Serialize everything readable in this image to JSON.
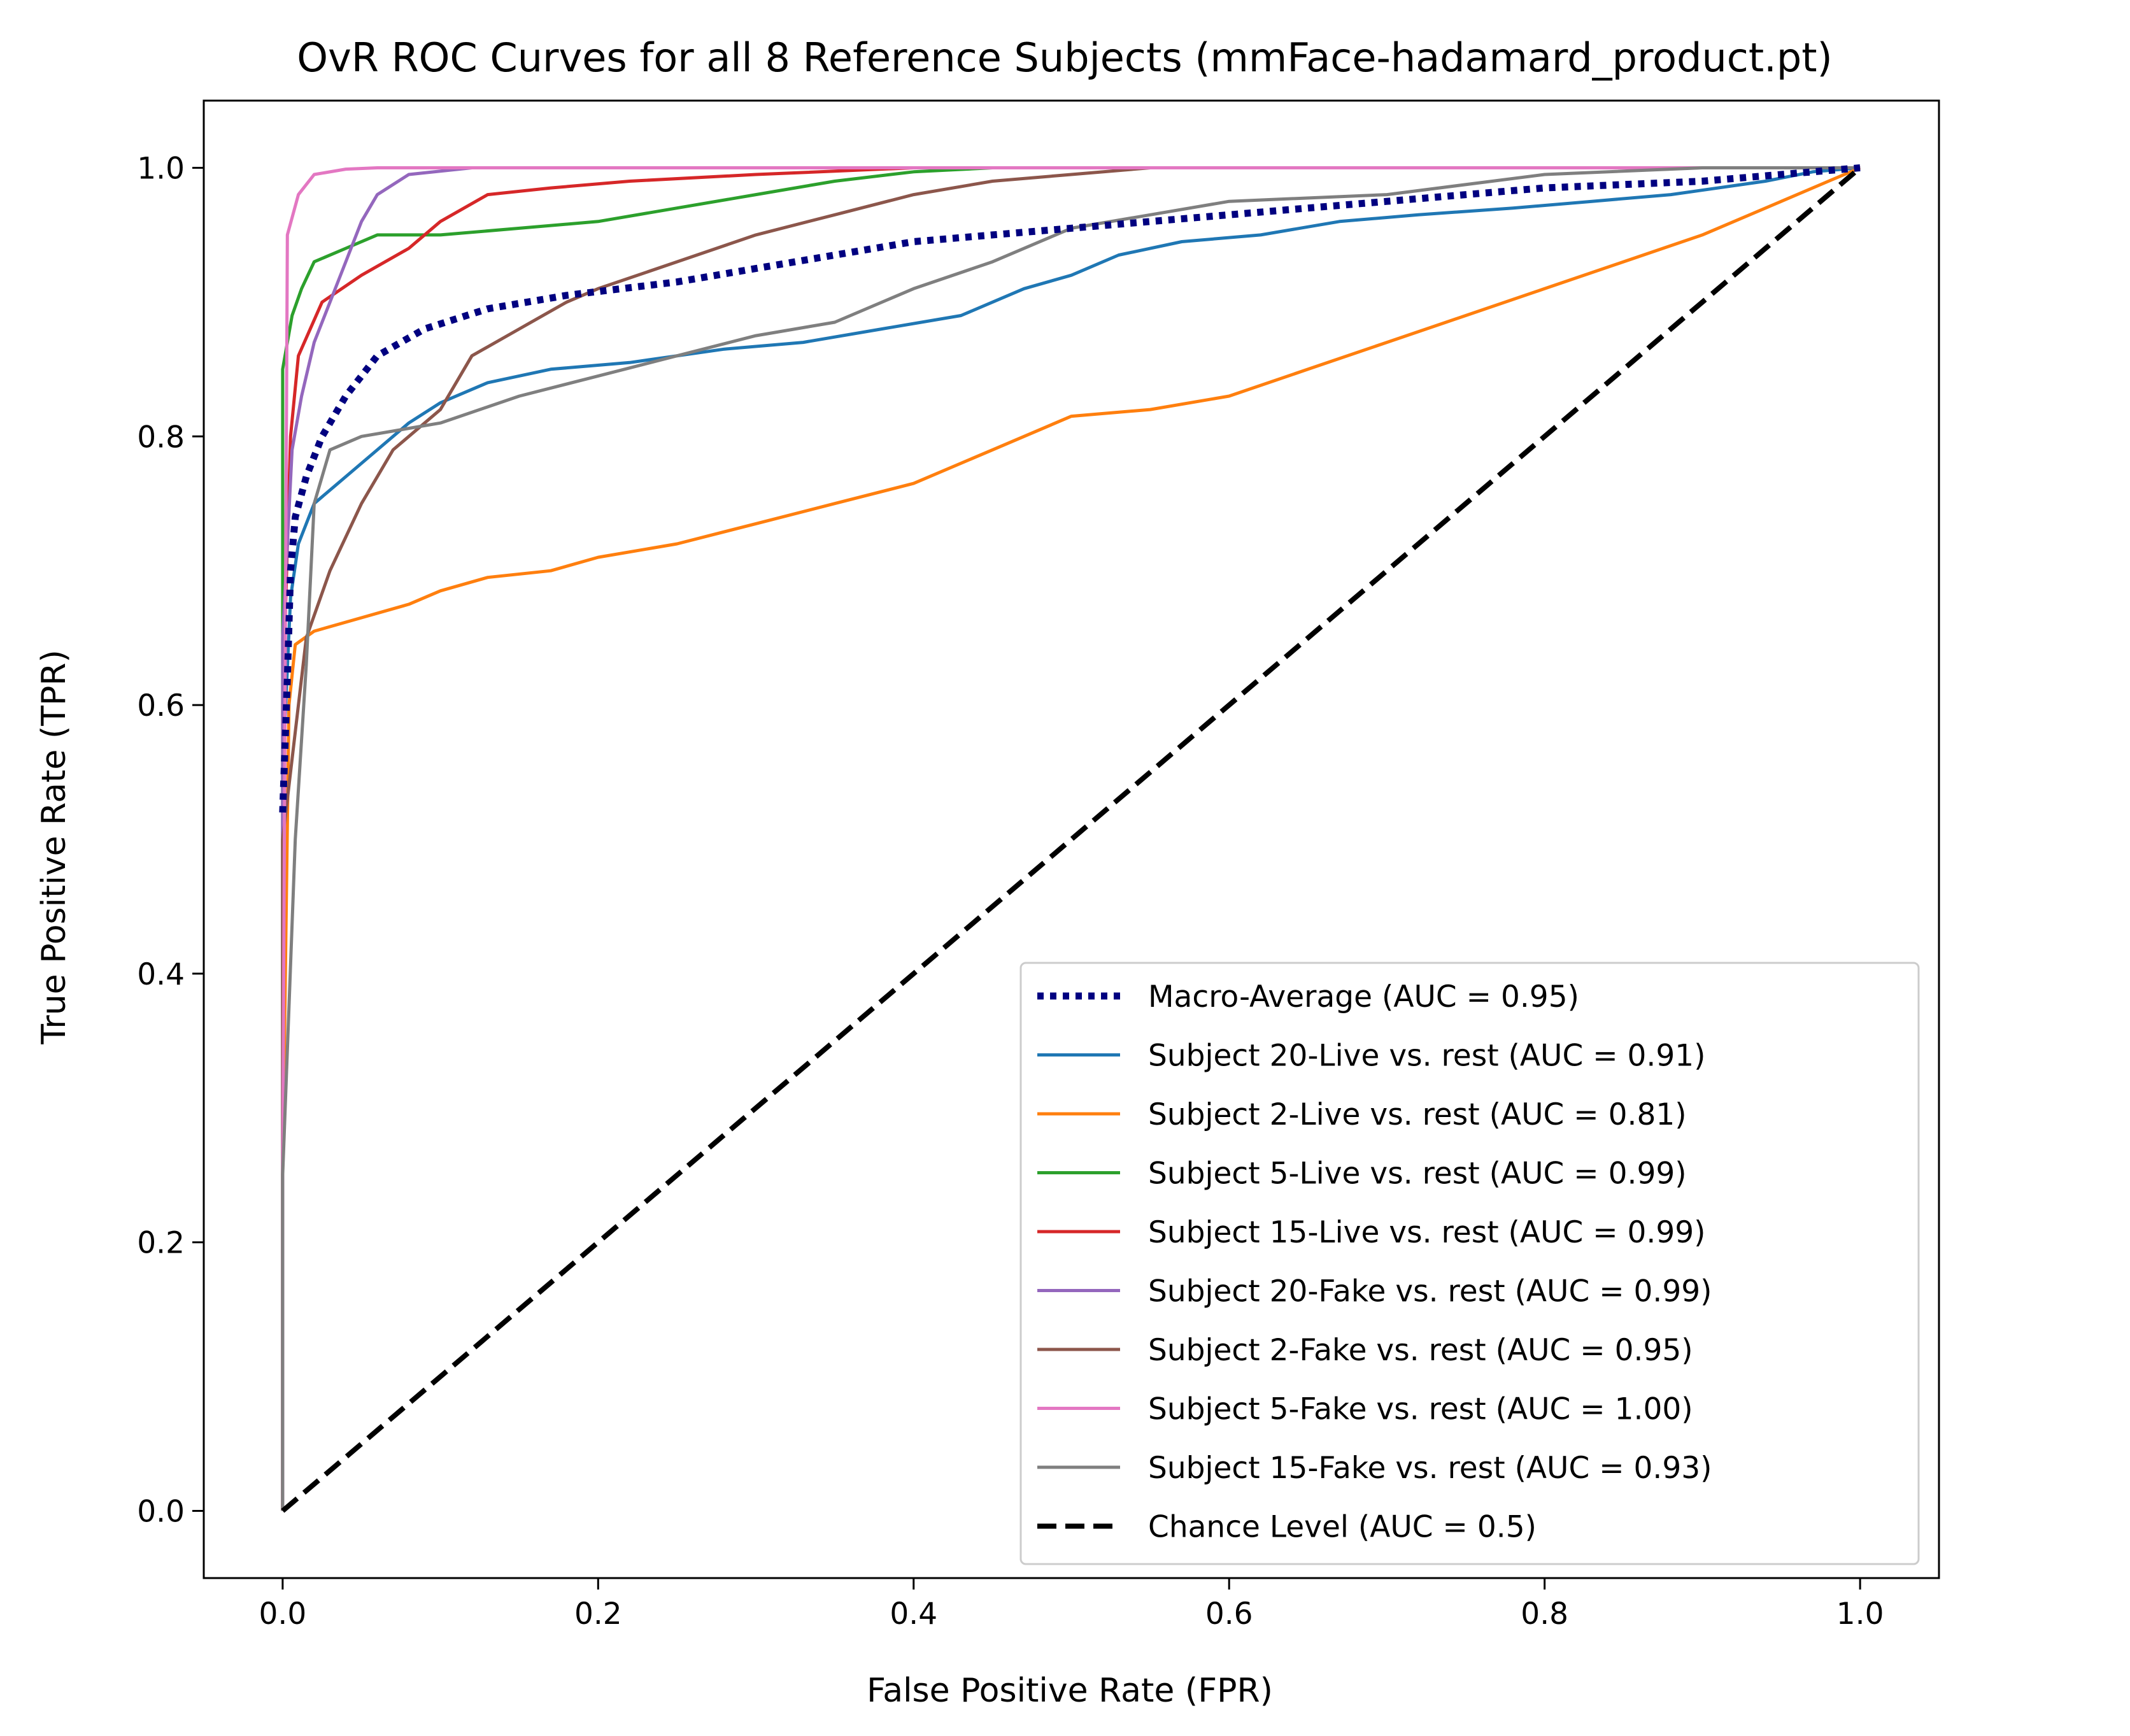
{
  "chart_data": {
    "type": "line",
    "title": "OvR ROC Curves for all 8 Reference Subjects (mmFace-hadamard_product.pt)",
    "xlabel": "False Positive Rate (FPR)",
    "ylabel": "True Positive Rate (TPR)",
    "xlim": [
      -0.05,
      1.05
    ],
    "ylim": [
      -0.05,
      1.05
    ],
    "xticks": [
      0.0,
      0.2,
      0.4,
      0.6,
      0.8,
      1.0
    ],
    "yticks": [
      0.0,
      0.2,
      0.4,
      0.6,
      0.8,
      1.0
    ],
    "xtick_labels": [
      "0.0",
      "0.2",
      "0.4",
      "0.6",
      "0.8",
      "1.0"
    ],
    "ytick_labels": [
      "0.0",
      "0.2",
      "0.4",
      "0.6",
      "0.8",
      "1.0"
    ],
    "grid": false,
    "legend_position": "lower-right",
    "series": [
      {
        "name": "Macro-Average (AUC = 0.95)",
        "color": "#000080",
        "style": "dotted",
        "points": [
          [
            0,
            0.52
          ],
          [
            0.003,
            0.62
          ],
          [
            0.005,
            0.7
          ],
          [
            0.008,
            0.74
          ],
          [
            0.015,
            0.77
          ],
          [
            0.025,
            0.8
          ],
          [
            0.04,
            0.83
          ],
          [
            0.06,
            0.86
          ],
          [
            0.09,
            0.88
          ],
          [
            0.13,
            0.895
          ],
          [
            0.18,
            0.905
          ],
          [
            0.25,
            0.915
          ],
          [
            0.3,
            0.925
          ],
          [
            0.35,
            0.935
          ],
          [
            0.4,
            0.945
          ],
          [
            0.45,
            0.95
          ],
          [
            0.5,
            0.955
          ],
          [
            0.55,
            0.96
          ],
          [
            0.6,
            0.965
          ],
          [
            0.65,
            0.97
          ],
          [
            0.7,
            0.975
          ],
          [
            0.75,
            0.98
          ],
          [
            0.8,
            0.985
          ],
          [
            0.9,
            0.99
          ],
          [
            1.0,
            1.0
          ]
        ]
      },
      {
        "name": "Subject 20-Live vs. rest (AUC = 0.91)",
        "color": "#1f77b4",
        "style": "solid",
        "points": [
          [
            0,
            0
          ],
          [
            0,
            0.55
          ],
          [
            0.005,
            0.68
          ],
          [
            0.01,
            0.72
          ],
          [
            0.02,
            0.75
          ],
          [
            0.04,
            0.77
          ],
          [
            0.06,
            0.79
          ],
          [
            0.08,
            0.81
          ],
          [
            0.1,
            0.825
          ],
          [
            0.13,
            0.84
          ],
          [
            0.17,
            0.85
          ],
          [
            0.22,
            0.855
          ],
          [
            0.28,
            0.865
          ],
          [
            0.33,
            0.87
          ],
          [
            0.38,
            0.88
          ],
          [
            0.43,
            0.89
          ],
          [
            0.47,
            0.91
          ],
          [
            0.5,
            0.92
          ],
          [
            0.53,
            0.935
          ],
          [
            0.57,
            0.945
          ],
          [
            0.62,
            0.95
          ],
          [
            0.67,
            0.96
          ],
          [
            0.72,
            0.965
          ],
          [
            0.78,
            0.97
          ],
          [
            0.83,
            0.975
          ],
          [
            0.88,
            0.98
          ],
          [
            0.94,
            0.99
          ],
          [
            0.97,
            0.997
          ],
          [
            1.0,
            1.0
          ]
        ]
      },
      {
        "name": "Subject 2-Live vs. rest (AUC = 0.81)",
        "color": "#ff7f0e",
        "style": "solid",
        "points": [
          [
            0,
            0
          ],
          [
            0,
            0.25
          ],
          [
            0.004,
            0.6
          ],
          [
            0.008,
            0.645
          ],
          [
            0.02,
            0.655
          ],
          [
            0.05,
            0.665
          ],
          [
            0.08,
            0.675
          ],
          [
            0.1,
            0.685
          ],
          [
            0.13,
            0.695
          ],
          [
            0.17,
            0.7
          ],
          [
            0.2,
            0.71
          ],
          [
            0.25,
            0.72
          ],
          [
            0.3,
            0.735
          ],
          [
            0.35,
            0.75
          ],
          [
            0.4,
            0.765
          ],
          [
            0.45,
            0.79
          ],
          [
            0.5,
            0.815
          ],
          [
            0.55,
            0.82
          ],
          [
            0.6,
            0.83
          ],
          [
            0.65,
            0.85
          ],
          [
            0.7,
            0.87
          ],
          [
            0.75,
            0.89
          ],
          [
            0.8,
            0.91
          ],
          [
            0.85,
            0.93
          ],
          [
            0.9,
            0.95
          ],
          [
            0.95,
            0.975
          ],
          [
            0.98,
            0.99
          ],
          [
            1.0,
            1.0
          ]
        ]
      },
      {
        "name": "Subject 5-Live vs. rest (AUC = 0.99)",
        "color": "#2ca02c",
        "style": "solid",
        "points": [
          [
            0,
            0
          ],
          [
            0,
            0.85
          ],
          [
            0.006,
            0.89
          ],
          [
            0.012,
            0.91
          ],
          [
            0.02,
            0.93
          ],
          [
            0.04,
            0.94
          ],
          [
            0.06,
            0.95
          ],
          [
            0.1,
            0.95
          ],
          [
            0.15,
            0.955
          ],
          [
            0.2,
            0.96
          ],
          [
            0.25,
            0.97
          ],
          [
            0.3,
            0.98
          ],
          [
            0.35,
            0.99
          ],
          [
            0.4,
            0.997
          ],
          [
            0.45,
            1.0
          ],
          [
            1.0,
            1.0
          ]
        ]
      },
      {
        "name": "Subject 15-Live vs. rest (AUC = 0.99)",
        "color": "#d62728",
        "style": "solid",
        "points": [
          [
            0,
            0
          ],
          [
            0,
            0.6
          ],
          [
            0.005,
            0.8
          ],
          [
            0.01,
            0.86
          ],
          [
            0.025,
            0.9
          ],
          [
            0.05,
            0.92
          ],
          [
            0.08,
            0.94
          ],
          [
            0.1,
            0.96
          ],
          [
            0.13,
            0.98
          ],
          [
            0.17,
            0.985
          ],
          [
            0.22,
            0.99
          ],
          [
            0.3,
            0.995
          ],
          [
            0.4,
            1.0
          ],
          [
            1.0,
            1.0
          ]
        ]
      },
      {
        "name": "Subject 20-Fake vs. rest (AUC = 0.99)",
        "color": "#9467bd",
        "style": "solid",
        "points": [
          [
            0,
            0
          ],
          [
            0,
            0.65
          ],
          [
            0.006,
            0.79
          ],
          [
            0.012,
            0.83
          ],
          [
            0.02,
            0.87
          ],
          [
            0.03,
            0.9
          ],
          [
            0.04,
            0.93
          ],
          [
            0.05,
            0.96
          ],
          [
            0.06,
            0.98
          ],
          [
            0.08,
            0.995
          ],
          [
            0.12,
            1.0
          ],
          [
            1.0,
            1.0
          ]
        ]
      },
      {
        "name": "Subject 2-Fake vs. rest (AUC = 0.95)",
        "color": "#8c564b",
        "style": "solid",
        "points": [
          [
            0,
            0
          ],
          [
            0,
            0.5
          ],
          [
            0.008,
            0.58
          ],
          [
            0.015,
            0.65
          ],
          [
            0.03,
            0.7
          ],
          [
            0.05,
            0.75
          ],
          [
            0.07,
            0.79
          ],
          [
            0.1,
            0.82
          ],
          [
            0.12,
            0.86
          ],
          [
            0.15,
            0.88
          ],
          [
            0.18,
            0.9
          ],
          [
            0.2,
            0.91
          ],
          [
            0.25,
            0.93
          ],
          [
            0.3,
            0.95
          ],
          [
            0.35,
            0.965
          ],
          [
            0.4,
            0.98
          ],
          [
            0.45,
            0.99
          ],
          [
            0.5,
            0.995
          ],
          [
            0.55,
            1.0
          ],
          [
            1.0,
            1.0
          ]
        ]
      },
      {
        "name": "Subject 5-Fake vs. rest (AUC = 1.00)",
        "color": "#e377c2",
        "style": "solid",
        "points": [
          [
            0,
            0
          ],
          [
            0,
            0.25
          ],
          [
            0.003,
            0.95
          ],
          [
            0.01,
            0.98
          ],
          [
            0.02,
            0.995
          ],
          [
            0.04,
            0.999
          ],
          [
            0.06,
            1.0
          ],
          [
            1.0,
            1.0
          ]
        ]
      },
      {
        "name": "Subject 15-Fake vs. rest (AUC = 0.93)",
        "color": "#7f7f7f",
        "style": "solid",
        "points": [
          [
            0,
            0
          ],
          [
            0,
            0.25
          ],
          [
            0.008,
            0.5
          ],
          [
            0.015,
            0.63
          ],
          [
            0.02,
            0.75
          ],
          [
            0.03,
            0.79
          ],
          [
            0.05,
            0.8
          ],
          [
            0.1,
            0.81
          ],
          [
            0.15,
            0.83
          ],
          [
            0.2,
            0.845
          ],
          [
            0.25,
            0.86
          ],
          [
            0.3,
            0.875
          ],
          [
            0.35,
            0.885
          ],
          [
            0.4,
            0.91
          ],
          [
            0.45,
            0.93
          ],
          [
            0.5,
            0.955
          ],
          [
            0.55,
            0.965
          ],
          [
            0.6,
            0.975
          ],
          [
            0.7,
            0.98
          ],
          [
            0.8,
            0.995
          ],
          [
            0.9,
            1.0
          ],
          [
            1.0,
            1.0
          ]
        ]
      },
      {
        "name": "Chance Level (AUC = 0.5)",
        "color": "#000000",
        "style": "dashed",
        "points": [
          [
            0,
            0
          ],
          [
            1,
            1
          ]
        ]
      }
    ]
  }
}
